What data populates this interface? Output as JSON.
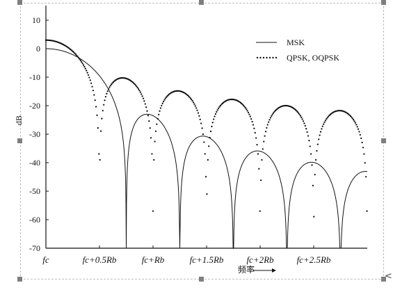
{
  "chart_data": {
    "type": "line",
    "title": "",
    "xlabel": "频率",
    "ylabel": "dB",
    "xlim": [
      0,
      3
    ],
    "ylim": [
      -70,
      10
    ],
    "x_unit": "multiples of Rb offset from fc",
    "yticks": [
      10,
      0,
      -10,
      -20,
      -30,
      -40,
      -50,
      -60,
      -70
    ],
    "xticks": [
      {
        "value": 0,
        "label": "fc"
      },
      {
        "value": 0.5,
        "label": "fc+0.5Rb"
      },
      {
        "value": 1.0,
        "label": "fc+Rb"
      },
      {
        "value": 1.5,
        "label": "fc+1.5Rb"
      },
      {
        "value": 2.0,
        "label": "fc+2Rb"
      },
      {
        "value": 2.5,
        "label": "fc+2.5Rb"
      }
    ],
    "grid": false,
    "legend_position": "top-right",
    "series": [
      {
        "name": "MSK",
        "style": "solid line",
        "formula": "MSK normalized PSD",
        "points": [
          [
            0,
            0
          ],
          [
            0.25,
            -2
          ],
          [
            0.5,
            -8
          ],
          [
            0.75,
            -57
          ],
          [
            1.0,
            -23
          ],
          [
            1.25,
            -58
          ],
          [
            1.5,
            -30
          ],
          [
            1.75,
            -70
          ],
          [
            2.0,
            -35
          ],
          [
            2.25,
            -67
          ],
          [
            2.5,
            -39
          ],
          [
            2.75,
            -70
          ],
          [
            3.0,
            -42
          ]
        ]
      },
      {
        "name": "QPSK, OQPSK",
        "style": "dotted",
        "formula": "sinc^2 (null spacing 0.5Rb)",
        "points": [
          [
            0,
            3
          ],
          [
            0.5,
            -45
          ],
          [
            0.75,
            -10
          ],
          [
            1.0,
            -55
          ],
          [
            1.25,
            -14
          ],
          [
            1.5,
            -55
          ],
          [
            1.75,
            -17
          ],
          [
            2.0,
            -55
          ],
          [
            2.25,
            -19
          ],
          [
            2.5,
            -55
          ],
          [
            2.75,
            -21
          ],
          [
            3.0,
            -34
          ]
        ]
      }
    ]
  },
  "ui": {
    "nav_glyph": "<"
  }
}
